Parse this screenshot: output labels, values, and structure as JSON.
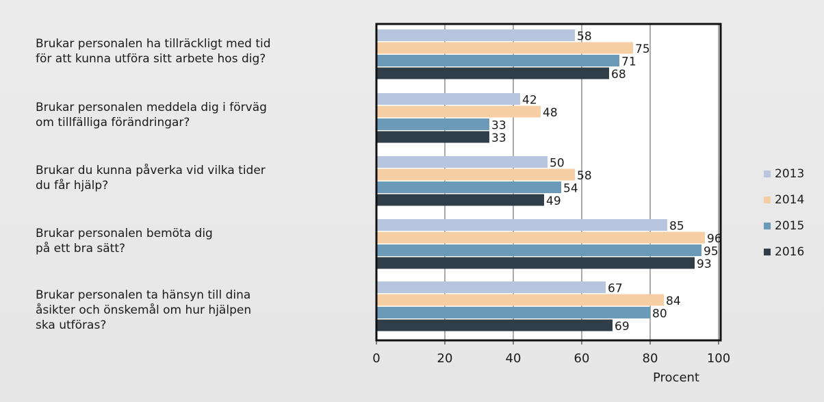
{
  "chart_data": {
    "type": "bar",
    "orientation": "horizontal",
    "categories": [
      "Brukar personalen ha tillräckligt med tid\nför att kunna utföra sitt arbete hos dig?",
      "Brukar personalen meddela dig i förväg\nom tillfälliga förändringar?",
      "Brukar du kunna påverka vid vilka tider\ndu får hjälp?",
      "Brukar personalen bemöta dig\npå ett bra sätt?",
      "Brukar personalen ta hänsyn till dina\nåsikter och önskemål om hur hjälpen\nska utföras?"
    ],
    "series": [
      {
        "name": "2013",
        "color": "#b7c6de",
        "values": [
          58,
          42,
          50,
          85,
          67
        ]
      },
      {
        "name": "2014",
        "color": "#f5cfa3",
        "values": [
          75,
          48,
          58,
          96,
          84
        ]
      },
      {
        "name": "2015",
        "color": "#6a9ab8",
        "values": [
          71,
          33,
          54,
          95,
          80
        ]
      },
      {
        "name": "2016",
        "color": "#2f3e48",
        "values": [
          68,
          33,
          49,
          93,
          69
        ]
      }
    ],
    "xlabel": "Procent",
    "xlim": [
      0,
      100
    ],
    "xticks": [
      0,
      20,
      40,
      60,
      80,
      100
    ],
    "grid": true,
    "legend_position": "right"
  }
}
